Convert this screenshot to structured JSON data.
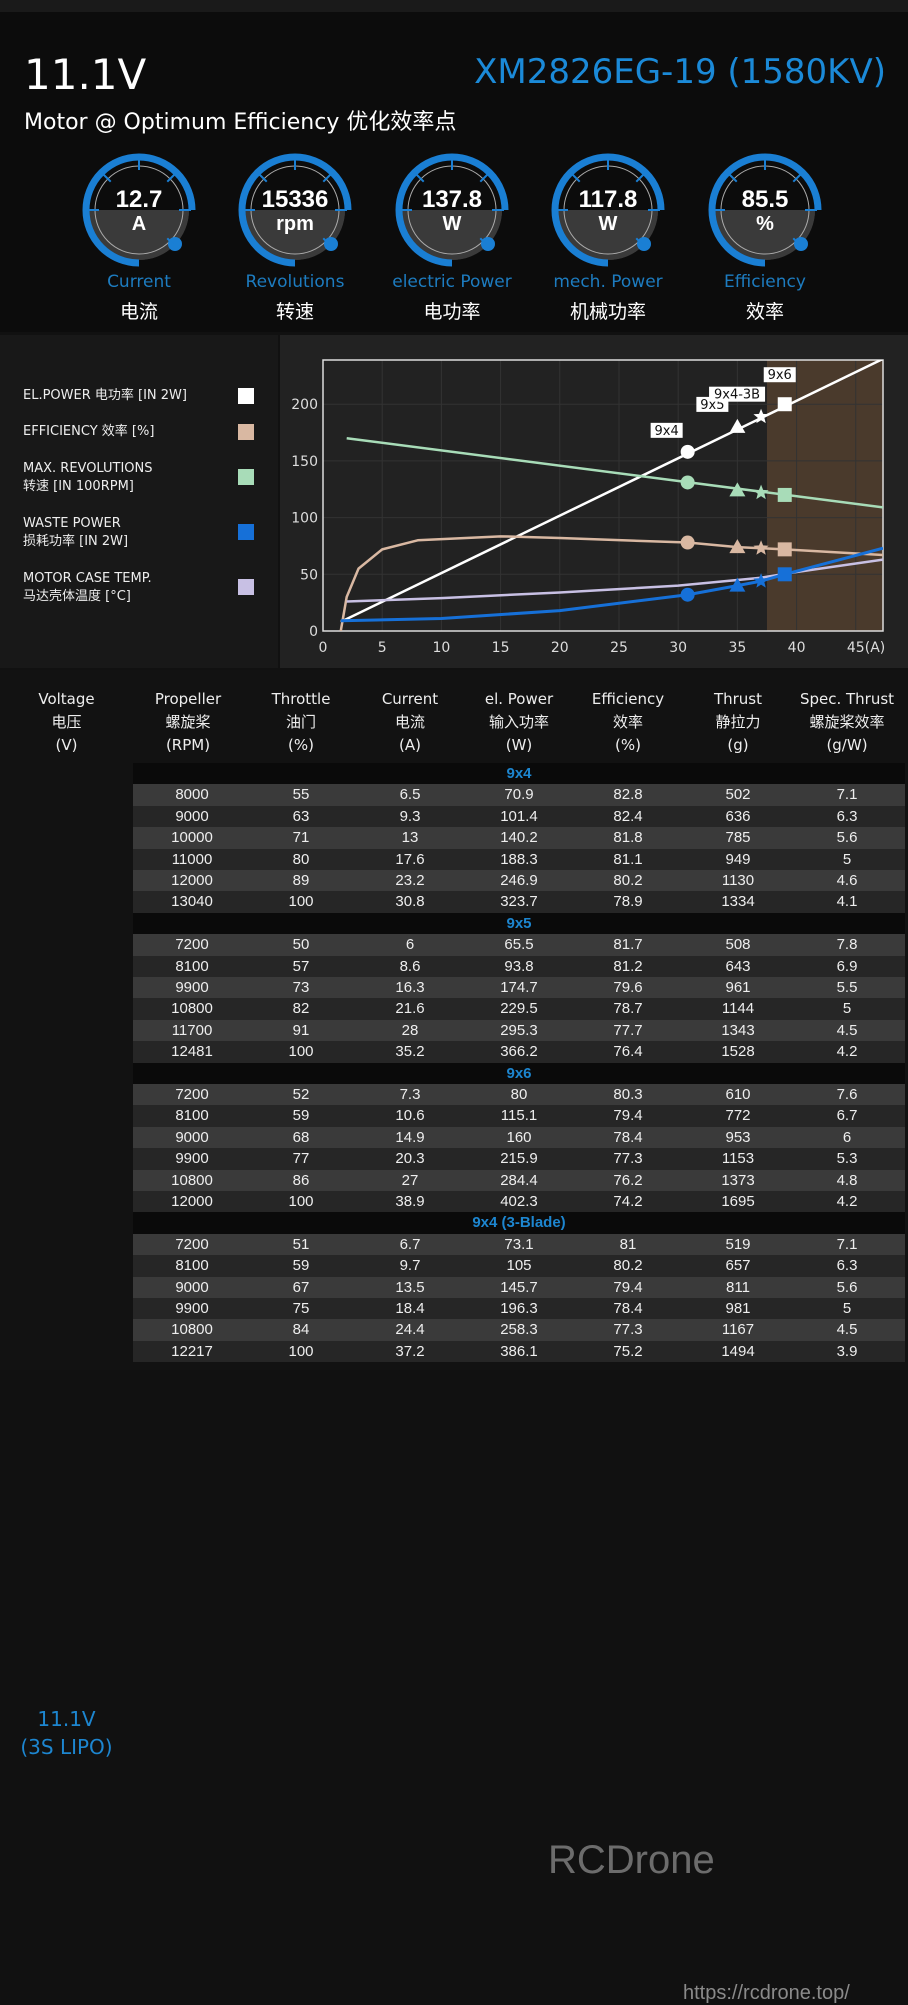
{
  "header": {
    "voltage": "11.1V",
    "model": "XM2826EG-19 (1580KV)",
    "subtitle": "Motor @ Optimum Efficiency  优化效率点"
  },
  "gauges": [
    {
      "value": "12.7",
      "unit": "A",
      "label_en": "Current",
      "label_cn": "电流"
    },
    {
      "value": "15336",
      "unit": "rpm",
      "label_en": "Revolutions",
      "label_cn": "转速"
    },
    {
      "value": "137.8",
      "unit": "W",
      "label_en": "electric Power",
      "label_cn": "电功率"
    },
    {
      "value": "117.8",
      "unit": "W",
      "label_en": "mech. Power",
      "label_cn": "机械功率"
    },
    {
      "value": "85.5",
      "unit": "%",
      "label_en": "Efficiency",
      "label_cn": "效率"
    }
  ],
  "legend": [
    {
      "l1": "EL.POWER 电功率 [IN 2W]",
      "l2": "",
      "color": "#ffffff"
    },
    {
      "l1": "EFFICIENCY 效率 [%]",
      "l2": "",
      "color": "#d9b8a2"
    },
    {
      "l1": "MAX. REVOLUTIONS",
      "l2": "转速 [IN 100RPM]",
      "color": "#a8dcb8"
    },
    {
      "l1": "WASTE POWER",
      "l2": "损耗功率 [IN 2W]",
      "color": "#1670d8"
    },
    {
      "l1": "MOTOR CASE TEMP.",
      "l2": "马达壳体温度 [°C]",
      "color": "#c8c0e4"
    }
  ],
  "chart_data": {
    "type": "line",
    "xlabel": "(A)",
    "xlim": [
      0,
      47.3
    ],
    "ylim": [
      0,
      239
    ],
    "xticks": [
      "0",
      "5",
      "10",
      "15",
      "20",
      "25",
      "30",
      "35",
      "40",
      "45"
    ],
    "yticks": [
      "0",
      "50",
      "100",
      "150",
      "200"
    ],
    "shaded_from_x": 37.5,
    "series": [
      {
        "name": "EL.POWER",
        "color": "#ffffff",
        "x": [
          1.5,
          47.3
        ],
        "y": [
          8,
          240
        ]
      },
      {
        "name": "MAX. REVOLUTIONS",
        "color": "#a8dcb8",
        "x": [
          2,
          47.3
        ],
        "y": [
          170,
          109
        ]
      },
      {
        "name": "EFFICIENCY",
        "color": "#d9b8a2",
        "x": [
          1.5,
          2,
          3,
          5,
          8,
          15,
          20,
          30.8,
          35,
          37,
          39,
          47.3
        ],
        "y": [
          0,
          30,
          55,
          72,
          80,
          83.5,
          82,
          78,
          74,
          73,
          72,
          67
        ]
      },
      {
        "name": "MOTOR CASE TEMP.",
        "color": "#c8c0e4",
        "x": [
          2,
          10,
          20,
          30,
          37,
          40,
          47.3
        ],
        "y": [
          26,
          29,
          34,
          40,
          47,
          52,
          63
        ]
      },
      {
        "name": "WASTE POWER",
        "color": "#1670d8",
        "x": [
          1.5,
          10,
          20,
          30.8,
          35,
          37,
          39,
          47.3
        ],
        "y": [
          9,
          11,
          18,
          32,
          40,
          44,
          50,
          73
        ]
      }
    ],
    "markers": [
      {
        "prop": "9x4",
        "shape": "circle",
        "x": 30.8,
        "y": [
          158,
          131,
          78,
          32
        ]
      },
      {
        "prop": "9x5",
        "shape": "triangle",
        "x": 35,
        "y": [
          180,
          124,
          74,
          40
        ]
      },
      {
        "prop": "9x4-3B",
        "shape": "star",
        "x": 37,
        "y": [
          189,
          122,
          73,
          44
        ]
      },
      {
        "prop": "9x6",
        "shape": "square",
        "x": 39,
        "y": [
          200,
          120,
          72,
          50
        ]
      }
    ]
  },
  "table": {
    "headers": [
      [
        "Voltage",
        "电压",
        "(V)"
      ],
      [
        "Propeller",
        "螺旋桨",
        "(RPM)"
      ],
      [
        "Throttle",
        "油门",
        "(%)"
      ],
      [
        "Current",
        "电流",
        "(A)"
      ],
      [
        "el. Power",
        "输入功率",
        "(W)"
      ],
      [
        "Efficiency",
        "效率",
        "(%)"
      ],
      [
        "Thrust",
        "静拉力",
        "(g)"
      ],
      [
        "Spec. Thrust",
        "螺旋桨效率",
        "(g/W)"
      ]
    ],
    "voltage_line1": "11.1V",
    "voltage_line2": "(3S LIPO)",
    "groups": [
      {
        "name": "9x4",
        "rows": [
          [
            "8000",
            "55",
            "6.5",
            "70.9",
            "82.8",
            "502",
            "7.1"
          ],
          [
            "9000",
            "63",
            "9.3",
            "101.4",
            "82.4",
            "636",
            "6.3"
          ],
          [
            "10000",
            "71",
            "13",
            "140.2",
            "81.8",
            "785",
            "5.6"
          ],
          [
            "11000",
            "80",
            "17.6",
            "188.3",
            "81.1",
            "949",
            "5"
          ],
          [
            "12000",
            "89",
            "23.2",
            "246.9",
            "80.2",
            "1130",
            "4.6"
          ],
          [
            "13040",
            "100",
            "30.8",
            "323.7",
            "78.9",
            "1334",
            "4.1"
          ]
        ]
      },
      {
        "name": "9x5",
        "rows": [
          [
            "7200",
            "50",
            "6",
            "65.5",
            "81.7",
            "508",
            "7.8"
          ],
          [
            "8100",
            "57",
            "8.6",
            "93.8",
            "81.2",
            "643",
            "6.9"
          ],
          [
            "9900",
            "73",
            "16.3",
            "174.7",
            "79.6",
            "961",
            "5.5"
          ],
          [
            "10800",
            "82",
            "21.6",
            "229.5",
            "78.7",
            "1144",
            "5"
          ],
          [
            "11700",
            "91",
            "28",
            "295.3",
            "77.7",
            "1343",
            "4.5"
          ],
          [
            "12481",
            "100",
            "35.2",
            "366.2",
            "76.4",
            "1528",
            "4.2"
          ]
        ]
      },
      {
        "name": "9x6",
        "rows": [
          [
            "7200",
            "52",
            "7.3",
            "80",
            "80.3",
            "610",
            "7.6"
          ],
          [
            "8100",
            "59",
            "10.6",
            "115.1",
            "79.4",
            "772",
            "6.7"
          ],
          [
            "9000",
            "68",
            "14.9",
            "160",
            "78.4",
            "953",
            "6"
          ],
          [
            "9900",
            "77",
            "20.3",
            "215.9",
            "77.3",
            "1153",
            "5.3"
          ],
          [
            "10800",
            "86",
            "27",
            "284.4",
            "76.2",
            "1373",
            "4.8"
          ],
          [
            "12000",
            "100",
            "38.9",
            "402.3",
            "74.2",
            "1695",
            "4.2"
          ]
        ]
      },
      {
        "name": "9x4 (3-Blade)",
        "rows": [
          [
            "7200",
            "51",
            "6.7",
            "73.1",
            "81",
            "519",
            "7.1"
          ],
          [
            "8100",
            "59",
            "9.7",
            "105",
            "80.2",
            "657",
            "6.3"
          ],
          [
            "9000",
            "67",
            "13.5",
            "145.7",
            "79.4",
            "811",
            "5.6"
          ],
          [
            "9900",
            "75",
            "18.4",
            "196.3",
            "78.4",
            "981",
            "5"
          ],
          [
            "10800",
            "84",
            "24.4",
            "258.3",
            "77.3",
            "1167",
            "4.5"
          ],
          [
            "12217",
            "100",
            "37.2",
            "386.1",
            "75.2",
            "1494",
            "3.9"
          ]
        ]
      }
    ]
  },
  "watermark": {
    "brand": "RCDrone",
    "url": "https://rcdrone.top/"
  }
}
